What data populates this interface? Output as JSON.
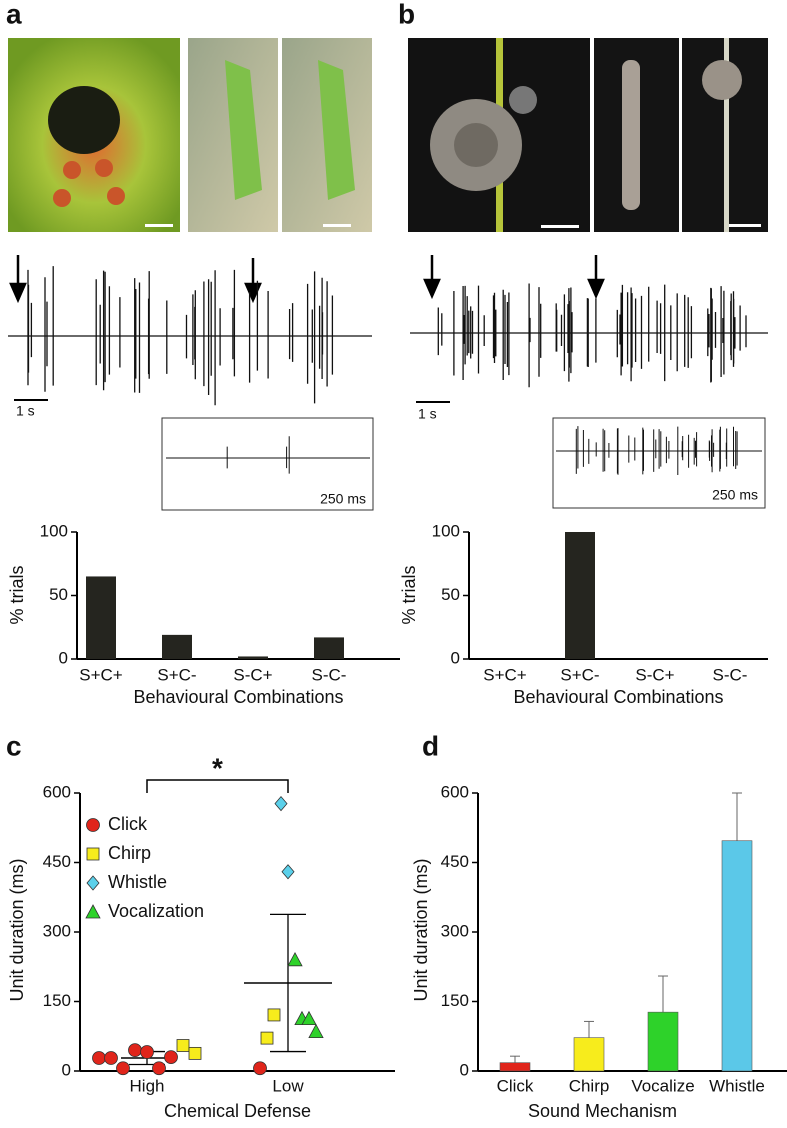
{
  "panel_labels": [
    "a",
    "b",
    "c",
    "d"
  ],
  "scale_labels": {
    "a_time": "1 s",
    "a_inset": "250 ms",
    "b_time": "1 s",
    "b_inset": "250 ms"
  },
  "chart_data": [
    {
      "type": "bar",
      "ylabel": "% trials",
      "xlabel": "Behavioural Combinations",
      "categories": [
        "S+C+",
        "S+C-",
        "S-C+",
        "S-C-"
      ],
      "values": [
        65,
        19,
        2,
        17
      ],
      "color": "#25251f",
      "ylim": [
        0,
        100
      ],
      "yticks": [
        0,
        50,
        100
      ]
    },
    {
      "type": "bar",
      "ylabel": "% trials",
      "xlabel": "Behavioural Combinations",
      "categories": [
        "S+C+",
        "S+C-",
        "S-C+",
        "S-C-"
      ],
      "values": [
        0,
        100,
        0,
        0
      ],
      "color": "#25251f",
      "ylim": [
        0,
        100
      ],
      "yticks": [
        0,
        50,
        100
      ]
    },
    {
      "type": "scatter",
      "ylabel": "Unit duration (ms)",
      "xlabel": "Chemical Defense",
      "categories": [
        "High",
        "Low"
      ],
      "ylim": [
        0,
        600
      ],
      "yticks": [
        0,
        150,
        300,
        450,
        600
      ],
      "annotation": "*",
      "series": [
        {
          "name": "Click",
          "color": "#e0251b",
          "marker": "circle",
          "x": [
            "High",
            "High",
            "High",
            "High",
            "High",
            "High",
            "High",
            "Low"
          ],
          "values": [
            28,
            28,
            6,
            45,
            41,
            6,
            30,
            6
          ]
        },
        {
          "name": "Chirp",
          "color": "#f7ec1c",
          "marker": "square",
          "x": [
            "High",
            "High",
            "Low",
            "Low"
          ],
          "values": [
            55,
            38,
            71,
            121
          ]
        },
        {
          "name": "Whistle",
          "color": "#5bd0ea",
          "marker": "diamond",
          "x": [
            "Low",
            "Low"
          ],
          "values": [
            577,
            430
          ]
        },
        {
          "name": "Vocalization",
          "color": "#2ed22a",
          "marker": "triangle",
          "x": [
            "Low",
            "Low",
            "Low",
            "Low"
          ],
          "values": [
            240,
            113,
            113,
            85
          ]
        }
      ],
      "summary": {
        "values": [
          28,
          190
        ],
        "errors": [
          14,
          148
        ]
      }
    },
    {
      "type": "errorbar",
      "ylabel": "Unit duration (ms)",
      "xlabel": "Sound Mechanism",
      "categories": [
        "Click",
        "Chirp",
        "Vocalize",
        "Whistle"
      ],
      "values": [
        18,
        72,
        127,
        497
      ],
      "errors": [
        14,
        35,
        78,
        103
      ],
      "colors": [
        "#e0251b",
        "#f7ec1c",
        "#2ed22a",
        "#5bc8e8"
      ],
      "ylim": [
        0,
        600
      ],
      "yticks": [
        0,
        150,
        300,
        450,
        600
      ]
    }
  ]
}
